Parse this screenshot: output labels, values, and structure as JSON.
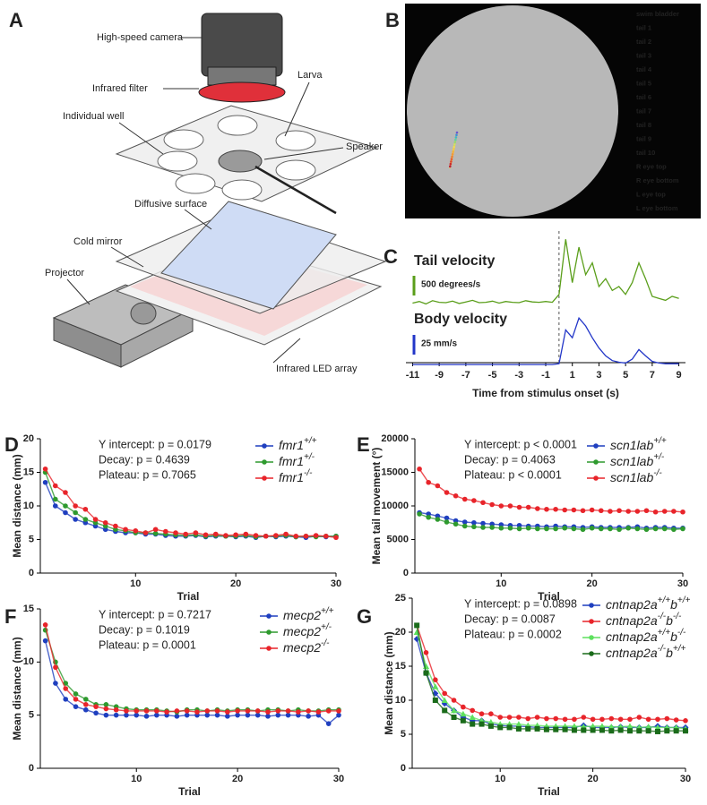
{
  "diagram": {
    "label": "A",
    "callouts": [
      "High-speed camera",
      "Infrared filter",
      "Larva",
      "Individual well",
      "Speaker",
      "Diffusive surface",
      "Cold mirror",
      "Projector",
      "Infrared LED array"
    ]
  },
  "image": {
    "label": "B",
    "keypoints": [
      {
        "name": "swim bladder",
        "color": "#6a55d0"
      },
      {
        "name": "tail 1",
        "color": "#3a8ee0"
      },
      {
        "name": "tail 2",
        "color": "#3ab6d0"
      },
      {
        "name": "tail 3",
        "color": "#5ed0a8"
      },
      {
        "name": "tail 4",
        "color": "#92d878"
      },
      {
        "name": "tail 5",
        "color": "#cce068"
      },
      {
        "name": "tail 6",
        "color": "#eedc58"
      },
      {
        "name": "tail 7",
        "color": "#f2c84c"
      },
      {
        "name": "tail 8",
        "color": "#f2b040"
      },
      {
        "name": "tail 9",
        "color": "#f29a38"
      },
      {
        "name": "tail 10",
        "color": "#f08030"
      },
      {
        "name": "R eye top",
        "color": "#ea5e2c"
      },
      {
        "name": "R eye bottom",
        "color": "#e0442c"
      },
      {
        "name": "L eye top",
        "color": "#d02c2c"
      },
      {
        "name": "L eye bottom",
        "color": "#b01a40"
      }
    ]
  },
  "chart_data": [
    {
      "type": "trace",
      "label": "C",
      "xlabel": "Time from stimulus onset (s)",
      "xlim": [
        -11.5,
        9.5
      ],
      "xticks": [
        -11,
        -9,
        -7,
        -5,
        -3,
        -1,
        1,
        3,
        5,
        7,
        9
      ],
      "vline": 0,
      "x": [
        -11,
        -10.5,
        -10,
        -9.5,
        -9,
        -8.5,
        -8,
        -7.5,
        -7,
        -6.5,
        -6,
        -5.5,
        -5,
        -4.5,
        -4,
        -3.5,
        -3,
        -2.5,
        -2,
        -1.5,
        -1,
        -0.5,
        0,
        0.5,
        1,
        1.5,
        2,
        2.5,
        3,
        3.5,
        4,
        4.5,
        5,
        5.5,
        6,
        6.5,
        7,
        7.5,
        8,
        8.5,
        9
      ],
      "series": [
        {
          "name": "Tail velocity",
          "color": "#5a9e1a",
          "scale_bar": {
            "value": 500,
            "label": "500 degrees/s"
          },
          "values": [
            80,
            120,
            60,
            140,
            100,
            90,
            130,
            70,
            110,
            150,
            90,
            100,
            130,
            80,
            120,
            100,
            90,
            140,
            110,
            100,
            120,
            100,
            300,
            1700,
            600,
            1500,
            800,
            1100,
            500,
            700,
            400,
            500,
            300,
            600,
            1100,
            700,
            250,
            200,
            150,
            250,
            200
          ]
        },
        {
          "name": "Body velocity",
          "color": "#2236c8",
          "scale_bar": {
            "value": 25,
            "label": "25 mm/s"
          },
          "values": [
            1,
            1,
            1,
            1,
            1,
            1,
            1,
            1,
            1,
            1,
            1,
            1,
            1,
            1,
            1,
            1,
            1,
            1,
            1,
            1,
            1,
            1,
            2,
            45,
            35,
            60,
            50,
            35,
            22,
            12,
            6,
            4,
            3,
            8,
            20,
            12,
            5,
            3,
            2,
            2,
            2
          ]
        }
      ]
    },
    {
      "type": "line",
      "label": "D",
      "xlabel": "Trial",
      "ylabel": "Mean distance (mm)",
      "annotations": [
        "Y intercept: p = 0.0179",
        "Decay: p = 0.4639",
        "Plateau: p = 0.7065"
      ],
      "xlim": [
        0.5,
        30
      ],
      "xticks": [
        10,
        20,
        30
      ],
      "ylim": [
        0,
        20
      ],
      "yticks": [
        0,
        5,
        10,
        15,
        20
      ],
      "x": [
        1,
        2,
        3,
        4,
        5,
        6,
        7,
        8,
        9,
        10,
        11,
        12,
        13,
        14,
        15,
        16,
        17,
        18,
        19,
        20,
        21,
        22,
        23,
        24,
        25,
        26,
        27,
        28,
        29,
        30
      ],
      "series": [
        {
          "name": [
            "fmr1",
            "+/+"
          ],
          "color": "#1f3fbf",
          "values": [
            13.5,
            10,
            9,
            8,
            7.5,
            7,
            6.5,
            6.2,
            6,
            6,
            5.8,
            5.8,
            5.6,
            5.5,
            5.5,
            5.6,
            5.4,
            5.5,
            5.5,
            5.4,
            5.5,
            5.3,
            5.5,
            5.4,
            5.5,
            5.4,
            5.3,
            5.5,
            5.4,
            5.5
          ]
        },
        {
          "name": [
            "fmr1",
            "+/-"
          ],
          "color": "#2e9a2e",
          "values": [
            15,
            11,
            10,
            9,
            8,
            7.5,
            7,
            6.5,
            6.3,
            6,
            6,
            5.9,
            5.8,
            5.7,
            5.6,
            5.7,
            5.5,
            5.6,
            5.5,
            5.5,
            5.6,
            5.4,
            5.5,
            5.5,
            5.6,
            5.4,
            5.5,
            5.4,
            5.5,
            5.5
          ]
        },
        {
          "name": [
            "fmr1",
            "-/-"
          ],
          "color": "#e8242a",
          "values": [
            15.5,
            13,
            12,
            10,
            9.5,
            8,
            7.5,
            7,
            6.5,
            6.3,
            6,
            6.5,
            6.2,
            6,
            5.8,
            6,
            5.7,
            5.8,
            5.6,
            5.7,
            5.8,
            5.6,
            5.5,
            5.6,
            5.8,
            5.5,
            5.5,
            5.6,
            5.5,
            5.3
          ]
        }
      ]
    },
    {
      "type": "line",
      "label": "E",
      "xlabel": "Trial",
      "ylabel": "Mean tail movement (°)",
      "annotations": [
        "Y intercept: p < 0.0001",
        "Decay: p = 0.4063",
        "Plateau: p < 0.0001"
      ],
      "xlim": [
        0.5,
        30
      ],
      "xticks": [
        10,
        20,
        30
      ],
      "ylim": [
        0,
        20000
      ],
      "yticks": [
        0,
        5000,
        10000,
        15000,
        20000
      ],
      "x": [
        1,
        2,
        3,
        4,
        5,
        6,
        7,
        8,
        9,
        10,
        11,
        12,
        13,
        14,
        15,
        16,
        17,
        18,
        19,
        20,
        21,
        22,
        23,
        24,
        25,
        26,
        27,
        28,
        29,
        30
      ],
      "series": [
        {
          "name": [
            "scn1lab",
            "+/+"
          ],
          "color": "#1f3fbf",
          "values": [
            9000,
            8800,
            8500,
            8200,
            7800,
            7600,
            7500,
            7400,
            7300,
            7200,
            7100,
            7100,
            7000,
            7000,
            6900,
            7000,
            6900,
            6900,
            6800,
            6900,
            6800,
            6800,
            6800,
            6800,
            6900,
            6700,
            6800,
            6800,
            6700,
            6700
          ]
        },
        {
          "name": [
            "scn1lab",
            "+/-"
          ],
          "color": "#2e9a2e",
          "values": [
            8800,
            8300,
            8000,
            7600,
            7300,
            7000,
            6900,
            6800,
            6800,
            6700,
            6700,
            6600,
            6700,
            6600,
            6600,
            6600,
            6700,
            6600,
            6500,
            6700,
            6600,
            6600,
            6500,
            6700,
            6600,
            6500,
            6600,
            6600,
            6500,
            6600
          ]
        },
        {
          "name": [
            "scn1lab",
            "-/-"
          ],
          "color": "#e8242a",
          "values": [
            15500,
            13500,
            13000,
            12000,
            11500,
            11000,
            10800,
            10500,
            10200,
            10000,
            10000,
            9800,
            9800,
            9600,
            9500,
            9500,
            9400,
            9400,
            9300,
            9400,
            9300,
            9200,
            9300,
            9200,
            9200,
            9300,
            9100,
            9200,
            9200,
            9100
          ]
        }
      ]
    },
    {
      "type": "line",
      "label": "F",
      "xlabel": "Trial",
      "ylabel": "Mean distance (mm)",
      "annotations": [
        "Y intercept: p = 0.7217",
        "Decay: p = 0.1019",
        "Plateau: p = 0.0001"
      ],
      "xlim": [
        0.5,
        30
      ],
      "xticks": [
        10,
        20,
        30
      ],
      "ylim": [
        0,
        15
      ],
      "yticks": [
        0,
        5,
        10,
        15
      ],
      "x": [
        1,
        2,
        3,
        4,
        5,
        6,
        7,
        8,
        9,
        10,
        11,
        12,
        13,
        14,
        15,
        16,
        17,
        18,
        19,
        20,
        21,
        22,
        23,
        24,
        25,
        26,
        27,
        28,
        29,
        30
      ],
      "series": [
        {
          "name": [
            "mecp2",
            "+/+"
          ],
          "color": "#1f3fbf",
          "values": [
            12,
            8,
            6.5,
            5.8,
            5.5,
            5.2,
            5,
            5,
            5,
            5,
            4.9,
            5,
            5,
            4.9,
            5,
            5,
            5,
            5,
            4.9,
            5,
            5,
            5,
            4.9,
            5,
            5,
            5,
            4.9,
            5,
            4.2,
            5
          ]
        },
        {
          "name": [
            "mecp2",
            "+/-"
          ],
          "color": "#2e9a2e",
          "values": [
            13,
            10,
            8,
            7,
            6.5,
            6,
            6,
            5.8,
            5.6,
            5.5,
            5.5,
            5.5,
            5.4,
            5.3,
            5.5,
            5.5,
            5.4,
            5.5,
            5.4,
            5.5,
            5.5,
            5.4,
            5.5,
            5.5,
            5.4,
            5.5,
            5.4,
            5.4,
            5.5,
            5.5
          ]
        },
        {
          "name": [
            "mecp2",
            "-/-"
          ],
          "color": "#e8242a",
          "values": [
            13.5,
            9.5,
            7.5,
            6.5,
            6,
            5.8,
            5.6,
            5.5,
            5.4,
            5.4,
            5.4,
            5.4,
            5.3,
            5.4,
            5.4,
            5.3,
            5.4,
            5.4,
            5.3,
            5.4,
            5.4,
            5.4,
            5.3,
            5.4,
            5.4,
            5.3,
            5.4,
            5.3,
            5.4,
            5.4
          ]
        }
      ]
    },
    {
      "type": "line",
      "label": "G",
      "xlabel": "Trial",
      "ylabel": "Mean distance (mm)",
      "annotations": [
        "Y intercept: p = 0.0898",
        "Decay: p = 0.0087",
        "Plateau: p = 0.0002"
      ],
      "xlim": [
        0.5,
        30
      ],
      "xticks": [
        10,
        20,
        30
      ],
      "ylim": [
        0,
        25
      ],
      "yticks": [
        0,
        5,
        10,
        15,
        20,
        25
      ],
      "x": [
        1,
        2,
        3,
        4,
        5,
        6,
        7,
        8,
        9,
        10,
        11,
        12,
        13,
        14,
        15,
        16,
        17,
        18,
        19,
        20,
        21,
        22,
        23,
        24,
        25,
        26,
        27,
        28,
        29,
        30
      ],
      "series": [
        {
          "name": [
            "cntnap2a",
            "+/+",
            "b",
            "+/+"
          ],
          "color": "#1f3fbf",
          "marker": "diamond",
          "values": [
            19,
            14,
            11,
            9.5,
            8.5,
            7.5,
            7,
            7,
            6.5,
            6.3,
            6.2,
            6.2,
            6.1,
            6,
            6,
            6,
            6,
            6,
            6.3,
            6,
            6,
            6,
            6.1,
            6,
            6,
            6,
            6.2,
            6,
            6,
            6
          ]
        },
        {
          "name": [
            "cntnap2a",
            "-/-",
            "b",
            "-/-"
          ],
          "color": "#e8242a",
          "marker": "circle",
          "values": [
            21,
            17,
            13,
            11,
            10,
            9,
            8.5,
            8,
            8,
            7.5,
            7.5,
            7.5,
            7.3,
            7.5,
            7.3,
            7.3,
            7.2,
            7.2,
            7.5,
            7.2,
            7.2,
            7.3,
            7.2,
            7.2,
            7.5,
            7.2,
            7.2,
            7.3,
            7.1,
            7
          ]
        },
        {
          "name": [
            "cntnap2a",
            "+/+",
            "b",
            "-/-"
          ],
          "color": "#5ee05e",
          "marker": "triangle",
          "values": [
            20,
            15,
            12,
            10,
            8.5,
            8,
            7.5,
            7,
            6.8,
            6.5,
            6.5,
            6.5,
            6.3,
            6.3,
            6.2,
            6.2,
            6.2,
            6.2,
            6.1,
            6.2,
            6.2,
            6.1,
            6.1,
            6.2,
            6,
            6.1,
            6,
            6,
            6,
            5.8
          ]
        },
        {
          "name": [
            "cntnap2a",
            "-/-",
            "b",
            "+/+"
          ],
          "color": "#1a6b1a",
          "marker": "square",
          "values": [
            21,
            14,
            10,
            8.5,
            7.5,
            7,
            6.5,
            6.5,
            6.2,
            6,
            6,
            5.8,
            5.8,
            5.8,
            5.7,
            5.7,
            5.7,
            5.6,
            5.6,
            5.6,
            5.6,
            5.5,
            5.6,
            5.5,
            5.5,
            5.5,
            5.4,
            5.5,
            5.5,
            5.5
          ]
        }
      ]
    }
  ]
}
